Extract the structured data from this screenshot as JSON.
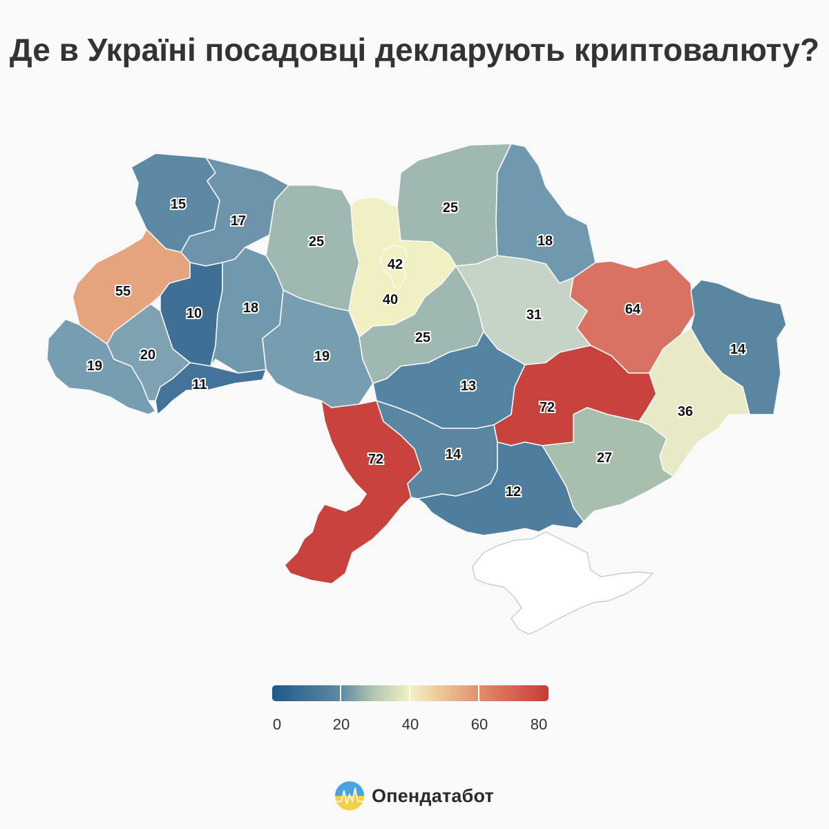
{
  "title": "Де в Україні посадовці декларують криптовалюту?",
  "map": {
    "regions": [
      {
        "id": "volyn",
        "value": 15,
        "color": "#5d89a5"
      },
      {
        "id": "rivne",
        "value": 17,
        "color": "#6e94ab"
      },
      {
        "id": "zhytomyr",
        "value": 25,
        "color": "#9fb8b1"
      },
      {
        "id": "kyiv-city",
        "value": 42,
        "color": "#f2f1c3"
      },
      {
        "id": "kyiv-oblast",
        "value": 40,
        "color": "#f1f0c3"
      },
      {
        "id": "chernihiv",
        "value": 25,
        "color": "#9fb8b1"
      },
      {
        "id": "sumy",
        "value": 18,
        "color": "#7199ae"
      },
      {
        "id": "kharkiv",
        "value": 64,
        "color": "#d87262"
      },
      {
        "id": "luhansk",
        "value": 14,
        "color": "#5a86a2"
      },
      {
        "id": "lviv",
        "value": 55,
        "color": "#e5a47d"
      },
      {
        "id": "ternopil",
        "value": 10,
        "color": "#3f6f95"
      },
      {
        "id": "khmelnytskyi",
        "value": 18,
        "color": "#7199ae"
      },
      {
        "id": "vinnytsia",
        "value": 19,
        "color": "#779db0"
      },
      {
        "id": "cherkasy",
        "value": 25,
        "color": "#9fb8b1"
      },
      {
        "id": "poltava",
        "value": 31,
        "color": "#c6d3c7"
      },
      {
        "id": "zakarpattia",
        "value": 19,
        "color": "#779db0"
      },
      {
        "id": "ivano-frankivsk",
        "value": 20,
        "color": "#7ea2b2"
      },
      {
        "id": "chernivtsi",
        "value": 11,
        "color": "#44739a"
      },
      {
        "id": "kirovohrad",
        "value": 13,
        "color": "#5583a2"
      },
      {
        "id": "dnipropetrovsk",
        "value": 72,
        "color": "#c8433d"
      },
      {
        "id": "donetsk",
        "value": 36,
        "color": "#e8eac5"
      },
      {
        "id": "odesa",
        "value": 72,
        "color": "#c8433d"
      },
      {
        "id": "mykolaiv",
        "value": 14,
        "color": "#5a86a2"
      },
      {
        "id": "zaporizhzhia",
        "value": 27,
        "color": "#a9bfae"
      },
      {
        "id": "kherson",
        "value": 12,
        "color": "#4f7d9e"
      }
    ]
  },
  "legend": {
    "ticks": [
      "0",
      "20",
      "40",
      "60",
      "80"
    ],
    "min": 0,
    "max": 80
  },
  "brand": {
    "name": "Опендатабот"
  }
}
